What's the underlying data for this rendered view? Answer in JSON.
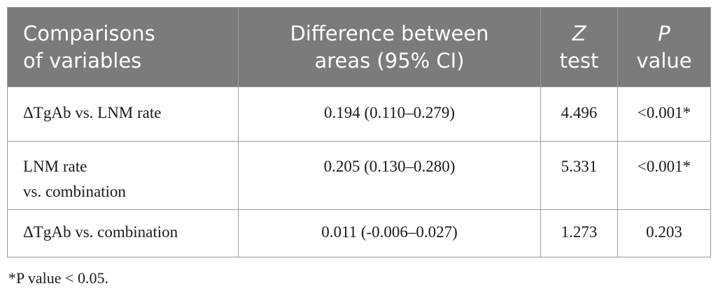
{
  "table": {
    "headers": [
      {
        "line1": "Comparisons",
        "line2": "of variables"
      },
      {
        "line1": "Difference between",
        "line2": "areas (95% CI)"
      },
      {
        "line1": "Z",
        "line2": "test"
      },
      {
        "line1": "P",
        "line2": "value"
      }
    ],
    "rows": [
      {
        "comparison": [
          "ΔTgAb vs. LNM rate"
        ],
        "difference": "0.194 (0.110–0.279)",
        "z": "4.496",
        "p": "<0.001*"
      },
      {
        "comparison": [
          "LNM rate",
          "vs. combination"
        ],
        "difference": "0.205 (0.130–0.280)",
        "z": "5.331",
        "p": "<0.001*"
      },
      {
        "comparison": [
          "ΔTgAb vs. combination"
        ],
        "difference": "0.011 (-0.006–0.027)",
        "z": "1.273",
        "p": "0.203"
      }
    ]
  },
  "footnote": "*P value < 0.05.",
  "colors": {
    "header_bg": "#7b7b7b",
    "header_text": "#ffffff",
    "border": "#9a9a9a"
  }
}
